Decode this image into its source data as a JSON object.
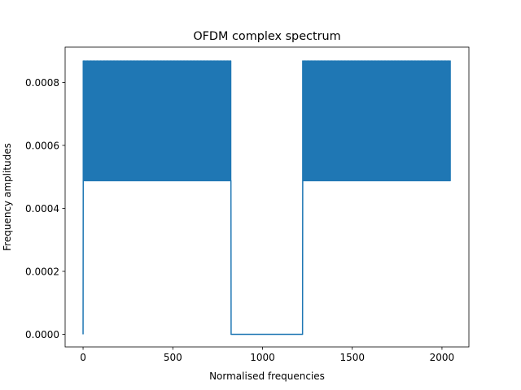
{
  "chart_data": {
    "type": "line",
    "title": "OFDM complex spectrum",
    "xlabel": "Normalised frequencies",
    "ylabel": "Frequency amplitudes",
    "xlim": [
      -100,
      2150
    ],
    "ylim": [
      -4e-05,
      0.000912
    ],
    "xticks": [
      0,
      500,
      1000,
      1500,
      2000
    ],
    "xtick_labels": [
      "0",
      "500",
      "1000",
      "1500",
      "2000"
    ],
    "yticks": [
      0.0,
      0.0002,
      0.0004,
      0.0006,
      0.0008
    ],
    "ytick_labels": [
      "0.0000",
      "0.0002",
      "0.0004",
      "0.0006",
      "0.0008"
    ],
    "grid": false,
    "series": [
      {
        "color": "#1f77b4",
        "pattern": {
          "start_value": 0.0,
          "low": 0.000488,
          "high": 0.000868,
          "active_bands": [
            [
              1,
              824
            ],
            [
              1224,
              2047
            ]
          ],
          "zero_band": [
            825,
            1223
          ],
          "oscillation_step": 6
        }
      }
    ]
  }
}
